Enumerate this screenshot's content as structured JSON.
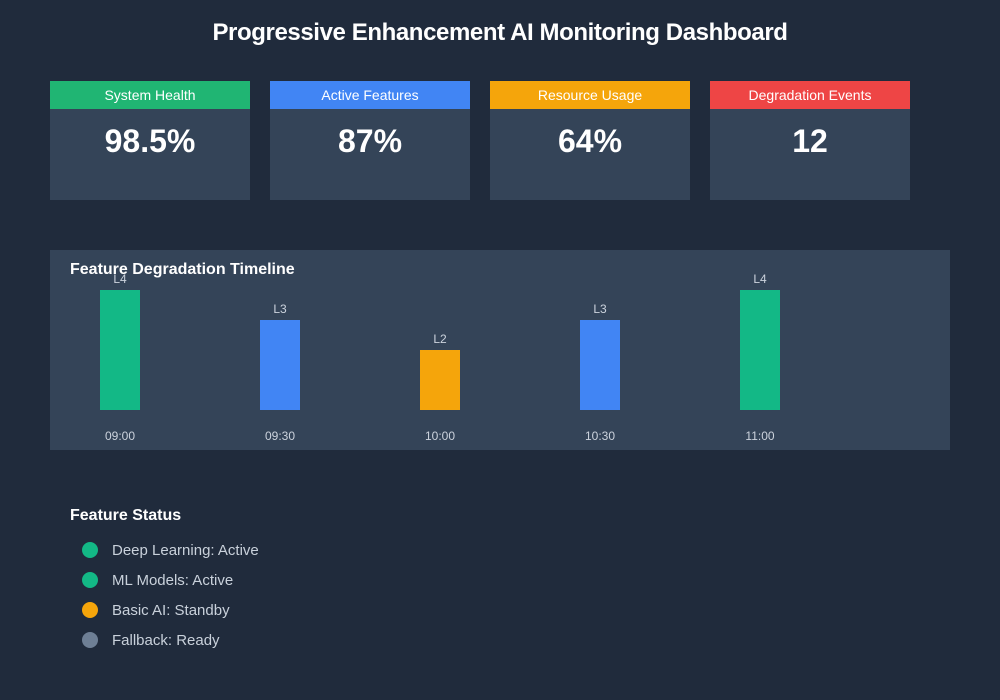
{
  "page": {
    "title": "Progressive Enhancement AI Monitoring Dashboard"
  },
  "colors": {
    "background": "#202b3c",
    "panel": "#344458",
    "green": "#13b886",
    "blue": "#4185f4",
    "orange": "#f5a50b",
    "red": "#ee4545",
    "gray": "#6e7f95",
    "muted_text": "#ccd3dd"
  },
  "stat_cards": [
    {
      "label": "System Health",
      "value": "98.5%",
      "header_color": "#20b573"
    },
    {
      "label": "Active Features",
      "value": "87%",
      "header_color": "#4185f4"
    },
    {
      "label": "Resource Usage",
      "value": "64%",
      "header_color": "#f5a50b"
    },
    {
      "label": "Degradation Events",
      "value": "12",
      "header_color": "#ee4545"
    }
  ],
  "chart_data": {
    "type": "bar",
    "title": "Feature Degradation Timeline",
    "categories": [
      "09:00",
      "09:30",
      "10:00",
      "10:30",
      "11:00"
    ],
    "values": [
      4,
      3,
      2,
      3,
      4
    ],
    "bar_labels": [
      "L4",
      "L3",
      "L2",
      "L3",
      "L4"
    ],
    "bar_colors": [
      "#13b886",
      "#4185f4",
      "#f5a50b",
      "#4185f4",
      "#13b886"
    ],
    "xlabel": "",
    "ylabel": "",
    "ylim": [
      0,
      4
    ],
    "grid": false,
    "legend": false
  },
  "feature_status": {
    "title": "Feature Status",
    "items": [
      {
        "label": "Deep Learning: Active",
        "color": "#13b886"
      },
      {
        "label": "ML Models: Active",
        "color": "#13b886"
      },
      {
        "label": "Basic AI: Standby",
        "color": "#f5a50b"
      },
      {
        "label": "Fallback: Ready",
        "color": "#6e7f95"
      }
    ]
  }
}
